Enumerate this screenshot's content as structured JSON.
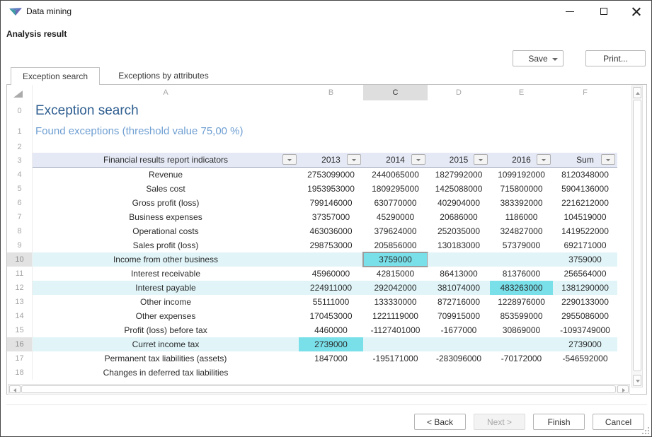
{
  "window": {
    "title": "Data mining"
  },
  "header": {
    "title": "Analysis result",
    "save_label": "Save",
    "print_label": "Print..."
  },
  "icons": {
    "app_icon": "data-mining-logo",
    "save_caret": "caret-down",
    "filter_buttons": "filter-dropdown",
    "corner": "select-all-triangle"
  },
  "tabs": [
    {
      "label": "Exception search",
      "active": true
    },
    {
      "label": "Exceptions by attributes",
      "active": false
    }
  ],
  "grid": {
    "column_letters": [
      "A",
      "B",
      "C",
      "D",
      "E",
      "F"
    ],
    "selected_column_letter": "C",
    "title_row": {
      "num": "0",
      "text": "Exception search"
    },
    "subtitle_row": {
      "num": "1",
      "text": "Found exceptions (threshold value 75,00 %)"
    },
    "empty_row_num": "2",
    "header_row": {
      "num": "3",
      "indicator_label": "Financial results report indicators",
      "year_labels": [
        "2013",
        "2014",
        "2015",
        "2016",
        "Sum"
      ]
    },
    "rows": [
      {
        "num": "4",
        "label": "Revenue",
        "values": [
          "2753099000",
          "2440065000",
          "1827992000",
          "1099192000",
          "8120348000"
        ],
        "highlight": false,
        "exception_cols": [],
        "active_col": null,
        "num_selected": false
      },
      {
        "num": "5",
        "label": "Sales cost",
        "values": [
          "1953953000",
          "1809295000",
          "1425088000",
          "715800000",
          "5904136000"
        ],
        "highlight": false,
        "exception_cols": [],
        "active_col": null,
        "num_selected": false
      },
      {
        "num": "6",
        "label": "Gross profit (loss)",
        "values": [
          "799146000",
          "630770000",
          "402904000",
          "383392000",
          "2216212000"
        ],
        "highlight": false,
        "exception_cols": [],
        "active_col": null,
        "num_selected": false
      },
      {
        "num": "7",
        "label": "Business expenses",
        "values": [
          "37357000",
          "45290000",
          "20686000",
          "1186000",
          "104519000"
        ],
        "highlight": false,
        "exception_cols": [],
        "active_col": null,
        "num_selected": false
      },
      {
        "num": "8",
        "label": "Operational costs",
        "values": [
          "463036000",
          "379624000",
          "252035000",
          "324827000",
          "1419522000"
        ],
        "highlight": false,
        "exception_cols": [],
        "active_col": null,
        "num_selected": false
      },
      {
        "num": "9",
        "label": "Sales profit (loss)",
        "values": [
          "298753000",
          "205856000",
          "130183000",
          "57379000",
          "692171000"
        ],
        "highlight": false,
        "exception_cols": [],
        "active_col": null,
        "num_selected": false
      },
      {
        "num": "10",
        "label": "Income from other business",
        "values": [
          "",
          "3759000",
          "",
          "",
          "3759000"
        ],
        "highlight": true,
        "exception_cols": [
          1
        ],
        "active_col": 1,
        "num_selected": true
      },
      {
        "num": "11",
        "label": "Interest receivable",
        "values": [
          "45960000",
          "42815000",
          "86413000",
          "81376000",
          "256564000"
        ],
        "highlight": false,
        "exception_cols": [],
        "active_col": null,
        "num_selected": false
      },
      {
        "num": "12",
        "label": "Interest payable",
        "values": [
          "224911000",
          "292042000",
          "381074000",
          "483263000",
          "1381290000"
        ],
        "highlight": true,
        "exception_cols": [
          3
        ],
        "active_col": null,
        "num_selected": false
      },
      {
        "num": "13",
        "label": "Other income",
        "values": [
          "55111000",
          "133330000",
          "872716000",
          "1228976000",
          "2290133000"
        ],
        "highlight": false,
        "exception_cols": [],
        "active_col": null,
        "num_selected": false
      },
      {
        "num": "14",
        "label": "Other expenses",
        "values": [
          "170453000",
          "1221119000",
          "709915000",
          "853599000",
          "2955086000"
        ],
        "highlight": false,
        "exception_cols": [],
        "active_col": null,
        "num_selected": false
      },
      {
        "num": "15",
        "label": "Profit (loss) before tax",
        "values": [
          "4460000",
          "-1127401000",
          "-1677000",
          "30869000",
          "-1093749000"
        ],
        "highlight": false,
        "exception_cols": [],
        "active_col": null,
        "num_selected": false
      },
      {
        "num": "16",
        "label": "Curret income tax",
        "values": [
          "2739000",
          "",
          "",
          "",
          "2739000"
        ],
        "highlight": true,
        "exception_cols": [
          0
        ],
        "active_col": null,
        "num_selected": true
      },
      {
        "num": "17",
        "label": "Permanent tax liabilities (assets)",
        "values": [
          "1847000",
          "-195171000",
          "-283096000",
          "-70172000",
          "-546592000"
        ],
        "highlight": false,
        "exception_cols": [],
        "active_col": null,
        "num_selected": false
      },
      {
        "num": "18",
        "label": "Changes in deferred tax liabilities",
        "values": [
          "",
          "",
          "",
          "",
          ""
        ],
        "highlight": false,
        "exception_cols": [],
        "active_col": null,
        "num_selected": false
      }
    ]
  },
  "footer": {
    "back_label": "< Back",
    "next_label": "Next >",
    "finish_label": "Finish",
    "cancel_label": "Cancel"
  },
  "colors": {
    "title_blue": "#2f5f90",
    "subtitle_blue": "#6f9fd2",
    "exception_cell": "#79e0ea",
    "exception_row": "#e1f5f9",
    "header_row_bg": "#e4e9f5"
  }
}
